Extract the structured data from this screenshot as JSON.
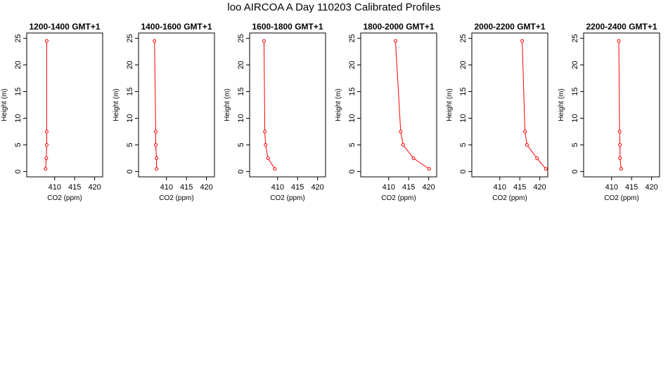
{
  "page": {
    "title": "loo AIRCOA A  Day 110203  Calibrated Profiles"
  },
  "colors": {
    "series": "#ff0000",
    "axis": "#000000",
    "background": "#ffffff"
  },
  "chart_data": [
    {
      "type": "line",
      "title": "1200-1400 GMT+1",
      "xlabel": "CO2 (ppm)",
      "ylabel": "Height (m)",
      "xlim": [
        403,
        422
      ],
      "ylim": [
        -1,
        26
      ],
      "xticks": [
        410,
        415,
        420
      ],
      "yticks": [
        0,
        5,
        10,
        15,
        20,
        25
      ],
      "grid": false,
      "x": [
        407.7,
        407.9,
        408.0,
        408.0,
        408.0
      ],
      "y": [
        0.5,
        2.5,
        5.0,
        7.5,
        24.5
      ]
    },
    {
      "type": "line",
      "title": "1400-1600 GMT+1",
      "xlabel": "CO2 (ppm)",
      "ylabel": "Height (m)",
      "xlim": [
        403,
        422
      ],
      "ylim": [
        -1,
        26
      ],
      "xticks": [
        410,
        415,
        420
      ],
      "yticks": [
        0,
        5,
        10,
        15,
        20,
        25
      ],
      "grid": false,
      "x": [
        407.5,
        407.5,
        407.3,
        407.3,
        407.0
      ],
      "y": [
        0.5,
        2.5,
        5.0,
        7.5,
        24.5
      ]
    },
    {
      "type": "line",
      "title": "1600-1800 GMT+1",
      "xlabel": "CO2 (ppm)",
      "ylabel": "Height (m)",
      "xlim": [
        403,
        422
      ],
      "ylim": [
        -1,
        26
      ],
      "xticks": [
        410,
        415,
        420
      ],
      "yticks": [
        0,
        5,
        10,
        15,
        20,
        25
      ],
      "grid": false,
      "x": [
        409.3,
        407.6,
        407.0,
        406.8,
        406.6
      ],
      "y": [
        0.5,
        2.5,
        5.0,
        7.5,
        24.5
      ]
    },
    {
      "type": "line",
      "title": "1800-2000 GMT+1",
      "xlabel": "CO2 (ppm)",
      "ylabel": "Height (m)",
      "xlim": [
        403,
        422
      ],
      "ylim": [
        -1,
        26
      ],
      "xticks": [
        410,
        415,
        420
      ],
      "yticks": [
        0,
        5,
        10,
        15,
        20,
        25
      ],
      "grid": false,
      "x": [
        420.1,
        416.2,
        413.6,
        413.0,
        411.7
      ],
      "y": [
        0.5,
        2.5,
        5.0,
        7.5,
        24.5
      ]
    },
    {
      "type": "line",
      "title": "2000-2200 GMT+1",
      "xlabel": "CO2 (ppm)",
      "ylabel": "Height (m)",
      "xlim": [
        403,
        422
      ],
      "ylim": [
        -1,
        26
      ],
      "xticks": [
        410,
        415,
        420
      ],
      "yticks": [
        0,
        5,
        10,
        15,
        20,
        25
      ],
      "grid": false,
      "x": [
        421.5,
        419.3,
        416.8,
        416.3,
        415.6
      ],
      "y": [
        0.5,
        2.5,
        5.0,
        7.5,
        24.5
      ]
    },
    {
      "type": "line",
      "title": "2200-2400 GMT+1",
      "xlabel": "CO2 (ppm)",
      "ylabel": "Height (m)",
      "xlim": [
        403,
        422
      ],
      "ylim": [
        -1,
        26
      ],
      "xticks": [
        410,
        415,
        420
      ],
      "yticks": [
        0,
        5,
        10,
        15,
        20,
        25
      ],
      "grid": false,
      "x": [
        412.4,
        412.1,
        412.1,
        412.0,
        411.8
      ],
      "y": [
        0.5,
        2.5,
        5.0,
        7.5,
        24.5
      ]
    }
  ]
}
